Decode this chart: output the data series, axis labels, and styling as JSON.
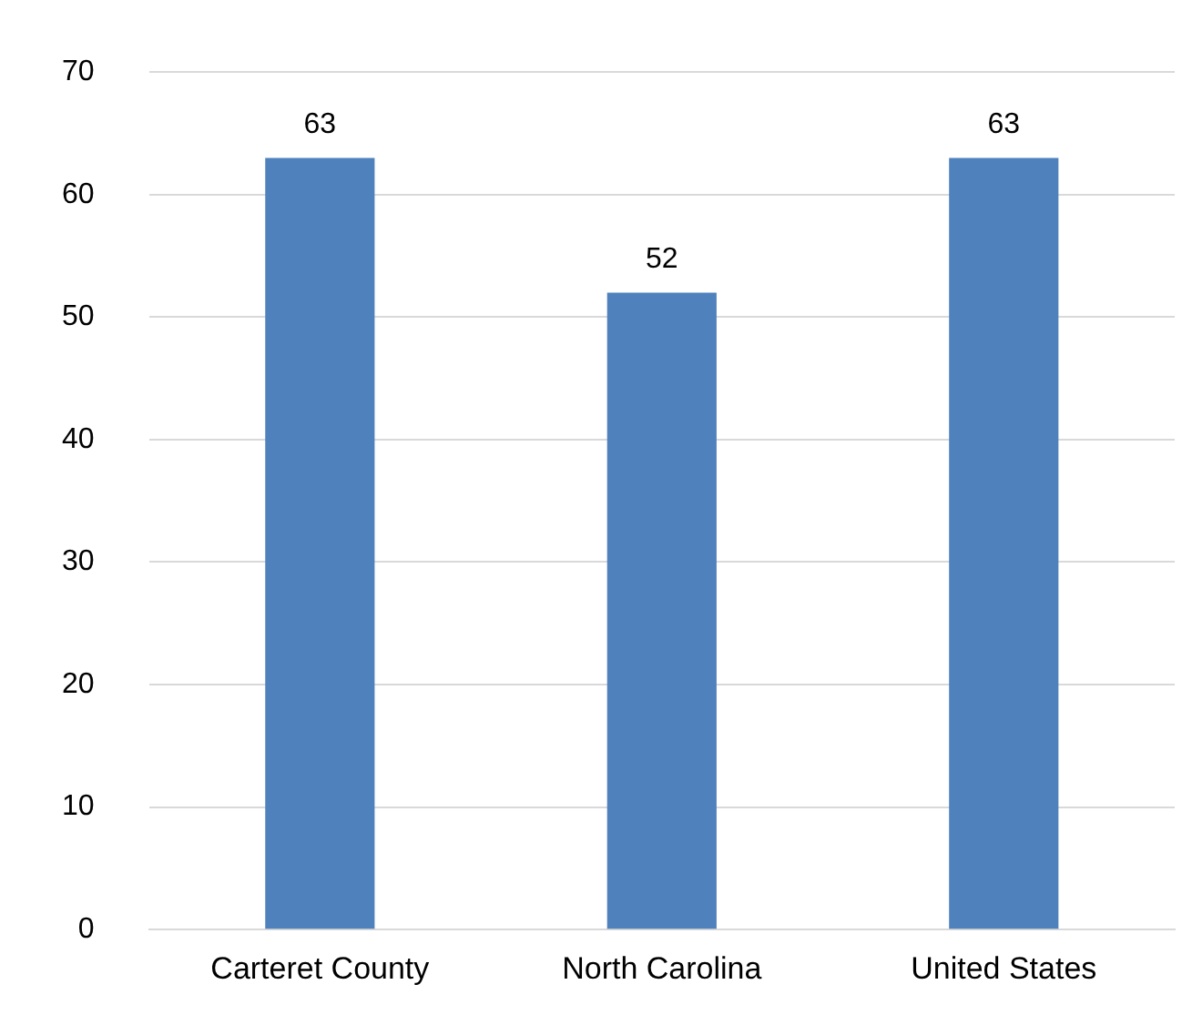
{
  "chart_data": {
    "type": "bar",
    "categories": [
      "Carteret County",
      "North Carolina",
      "United States"
    ],
    "values": [
      63,
      52,
      63
    ],
    "color": "#4f81bd",
    "ylim": [
      0,
      70
    ],
    "yticks": [
      0,
      10,
      20,
      30,
      40,
      50,
      60,
      70
    ],
    "grid": "y",
    "data_labels": true
  }
}
